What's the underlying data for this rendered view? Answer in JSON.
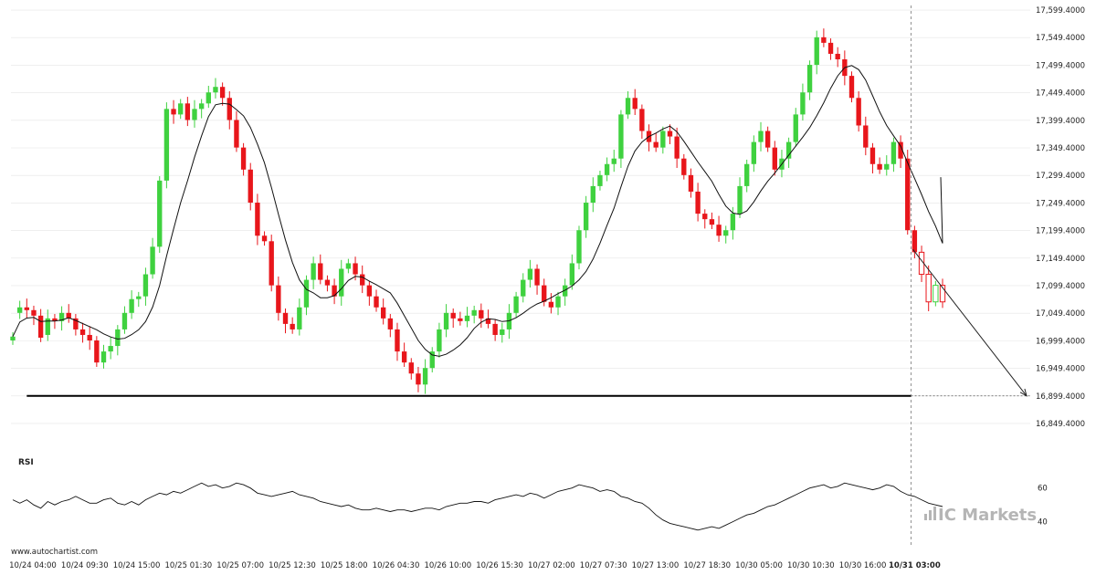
{
  "chart_data": {
    "type": "candlestick",
    "title": "",
    "main_panel": {
      "y_ticks": [
        "17,599.4000",
        "17,549.4000",
        "17,499.4000",
        "17,449.4000",
        "17,399.4000",
        "17,349.4000",
        "17,299.4000",
        "17,249.4000",
        "17,199.4000",
        "17,149.4000",
        "17,099.4000",
        "17,049.4000",
        "16,999.4000",
        "16,949.4000",
        "16,899.4000",
        "16,849.4000"
      ],
      "ylim": [
        16839.4,
        17604.4
      ],
      "support_level": 16899.4,
      "support_start_label": "10/24 09:30",
      "forecast_target": 16899.4,
      "vertical_marker_label": "10/31 03:00",
      "close": [
        17007,
        17060,
        17055,
        17045,
        17005,
        17040,
        17035,
        17050,
        17040,
        17020,
        17010,
        17000,
        16960,
        16980,
        16990,
        17020,
        17050,
        17075,
        17080,
        17120,
        17170,
        17290,
        17420,
        17410,
        17430,
        17400,
        17420,
        17430,
        17450,
        17460,
        17440,
        17400,
        17350,
        17310,
        17250,
        17190,
        17180,
        17100,
        17050,
        17030,
        17020,
        17060,
        17110,
        17140,
        17110,
        17100,
        17080,
        17130,
        17140,
        17120,
        17100,
        17080,
        17060,
        17040,
        17020,
        16980,
        16960,
        16940,
        16920,
        16950,
        16980,
        17020,
        17050,
        17040,
        17035,
        17045,
        17055,
        17040,
        17030,
        17010,
        17020,
        17050,
        17080,
        17110,
        17130,
        17100,
        17070,
        17060,
        17080,
        17100,
        17140,
        17200,
        17250,
        17280,
        17300,
        17320,
        17330,
        17410,
        17440,
        17420,
        17380,
        17360,
        17350,
        17380,
        17370,
        17330,
        17300,
        17270,
        17230,
        17220,
        17210,
        17190,
        17200,
        17230,
        17280,
        17320,
        17360,
        17380,
        17350,
        17310,
        17330,
        17360,
        17410,
        17450,
        17500,
        17550,
        17540,
        17520,
        17510,
        17480,
        17440,
        17390,
        17350,
        17320,
        17310,
        17320,
        17360,
        17330,
        17200,
        17160,
        17120,
        17070,
        17100,
        17070
      ],
      "open": [
        17000,
        17050,
        17060,
        17055,
        17045,
        17010,
        17040,
        17035,
        17050,
        17040,
        17020,
        17010,
        17000,
        16960,
        16980,
        16990,
        17020,
        17050,
        17075,
        17080,
        17120,
        17170,
        17290,
        17420,
        17410,
        17430,
        17400,
        17420,
        17430,
        17450,
        17460,
        17440,
        17400,
        17350,
        17310,
        17250,
        17190,
        17180,
        17100,
        17050,
        17030,
        17020,
        17060,
        17110,
        17140,
        17110,
        17100,
        17080,
        17130,
        17140,
        17120,
        17100,
        17080,
        17060,
        17040,
        17020,
        16980,
        16960,
        16940,
        16920,
        16950,
        16980,
        17020,
        17050,
        17040,
        17035,
        17045,
        17055,
        17040,
        17030,
        17010,
        17020,
        17050,
        17080,
        17110,
        17130,
        17100,
        17070,
        17060,
        17080,
        17100,
        17140,
        17200,
        17250,
        17280,
        17300,
        17320,
        17330,
        17410,
        17440,
        17420,
        17380,
        17360,
        17350,
        17380,
        17370,
        17330,
        17300,
        17270,
        17230,
        17220,
        17210,
        17190,
        17200,
        17230,
        17280,
        17320,
        17360,
        17380,
        17350,
        17310,
        17330,
        17360,
        17410,
        17450,
        17500,
        17550,
        17540,
        17520,
        17510,
        17480,
        17440,
        17390,
        17350,
        17320,
        17310,
        17320,
        17360,
        17330,
        17200,
        17160,
        17120,
        17070,
        17100
      ]
    },
    "rsi_panel": {
      "label": "RSI",
      "y_ticks": [
        "60",
        "40"
      ],
      "ylim": [
        30,
        68
      ],
      "values": [
        53,
        51,
        53,
        50,
        48,
        52,
        50,
        52,
        53,
        55,
        53,
        51,
        51,
        53,
        54,
        51,
        50,
        52,
        50,
        53,
        55,
        57,
        56,
        58,
        57,
        59,
        61,
        63,
        61,
        62,
        60,
        61,
        63,
        62,
        60,
        57,
        56,
        55,
        56,
        57,
        58,
        56,
        55,
        54,
        52,
        51,
        50,
        49,
        50,
        48,
        47,
        47,
        48,
        47,
        46,
        47,
        47,
        46,
        47,
        48,
        48,
        47,
        49,
        50,
        51,
        51,
        52,
        52,
        51,
        53,
        54,
        55,
        56,
        55,
        57,
        56,
        54,
        56,
        58,
        59,
        60,
        62,
        61,
        60,
        58,
        59,
        58,
        55,
        54,
        52,
        51,
        48,
        44,
        41,
        39,
        38,
        37,
        36,
        35,
        36,
        37,
        36,
        38,
        40,
        42,
        44,
        45,
        47,
        49,
        50,
        52,
        54,
        56,
        58,
        60,
        61,
        62,
        60,
        61,
        63,
        62,
        61,
        60,
        59,
        60,
        62,
        61,
        58,
        56,
        55,
        53,
        51,
        50,
        49
      ]
    },
    "x_ticks": [
      "10/24 04:00",
      "10/24 09:30",
      "10/24 15:00",
      "10/25 01:30",
      "10/25 07:00",
      "10/25 12:30",
      "10/25 18:00",
      "10/26 04:30",
      "10/26 10:00",
      "10/26 15:30",
      "10/27 02:00",
      "10/27 07:30",
      "10/27 13:00",
      "10/27 18:30",
      "10/30 05:00",
      "10/30 10:30",
      "10/30 16:00",
      "10/31 03:00"
    ],
    "colors": {
      "up": "#3fd13f",
      "down": "#e8161b",
      "line": "#111111",
      "grid": "#e6e6e6"
    }
  },
  "watermark_left": "www.autochartist.com",
  "watermark_brand": "IC Markets"
}
